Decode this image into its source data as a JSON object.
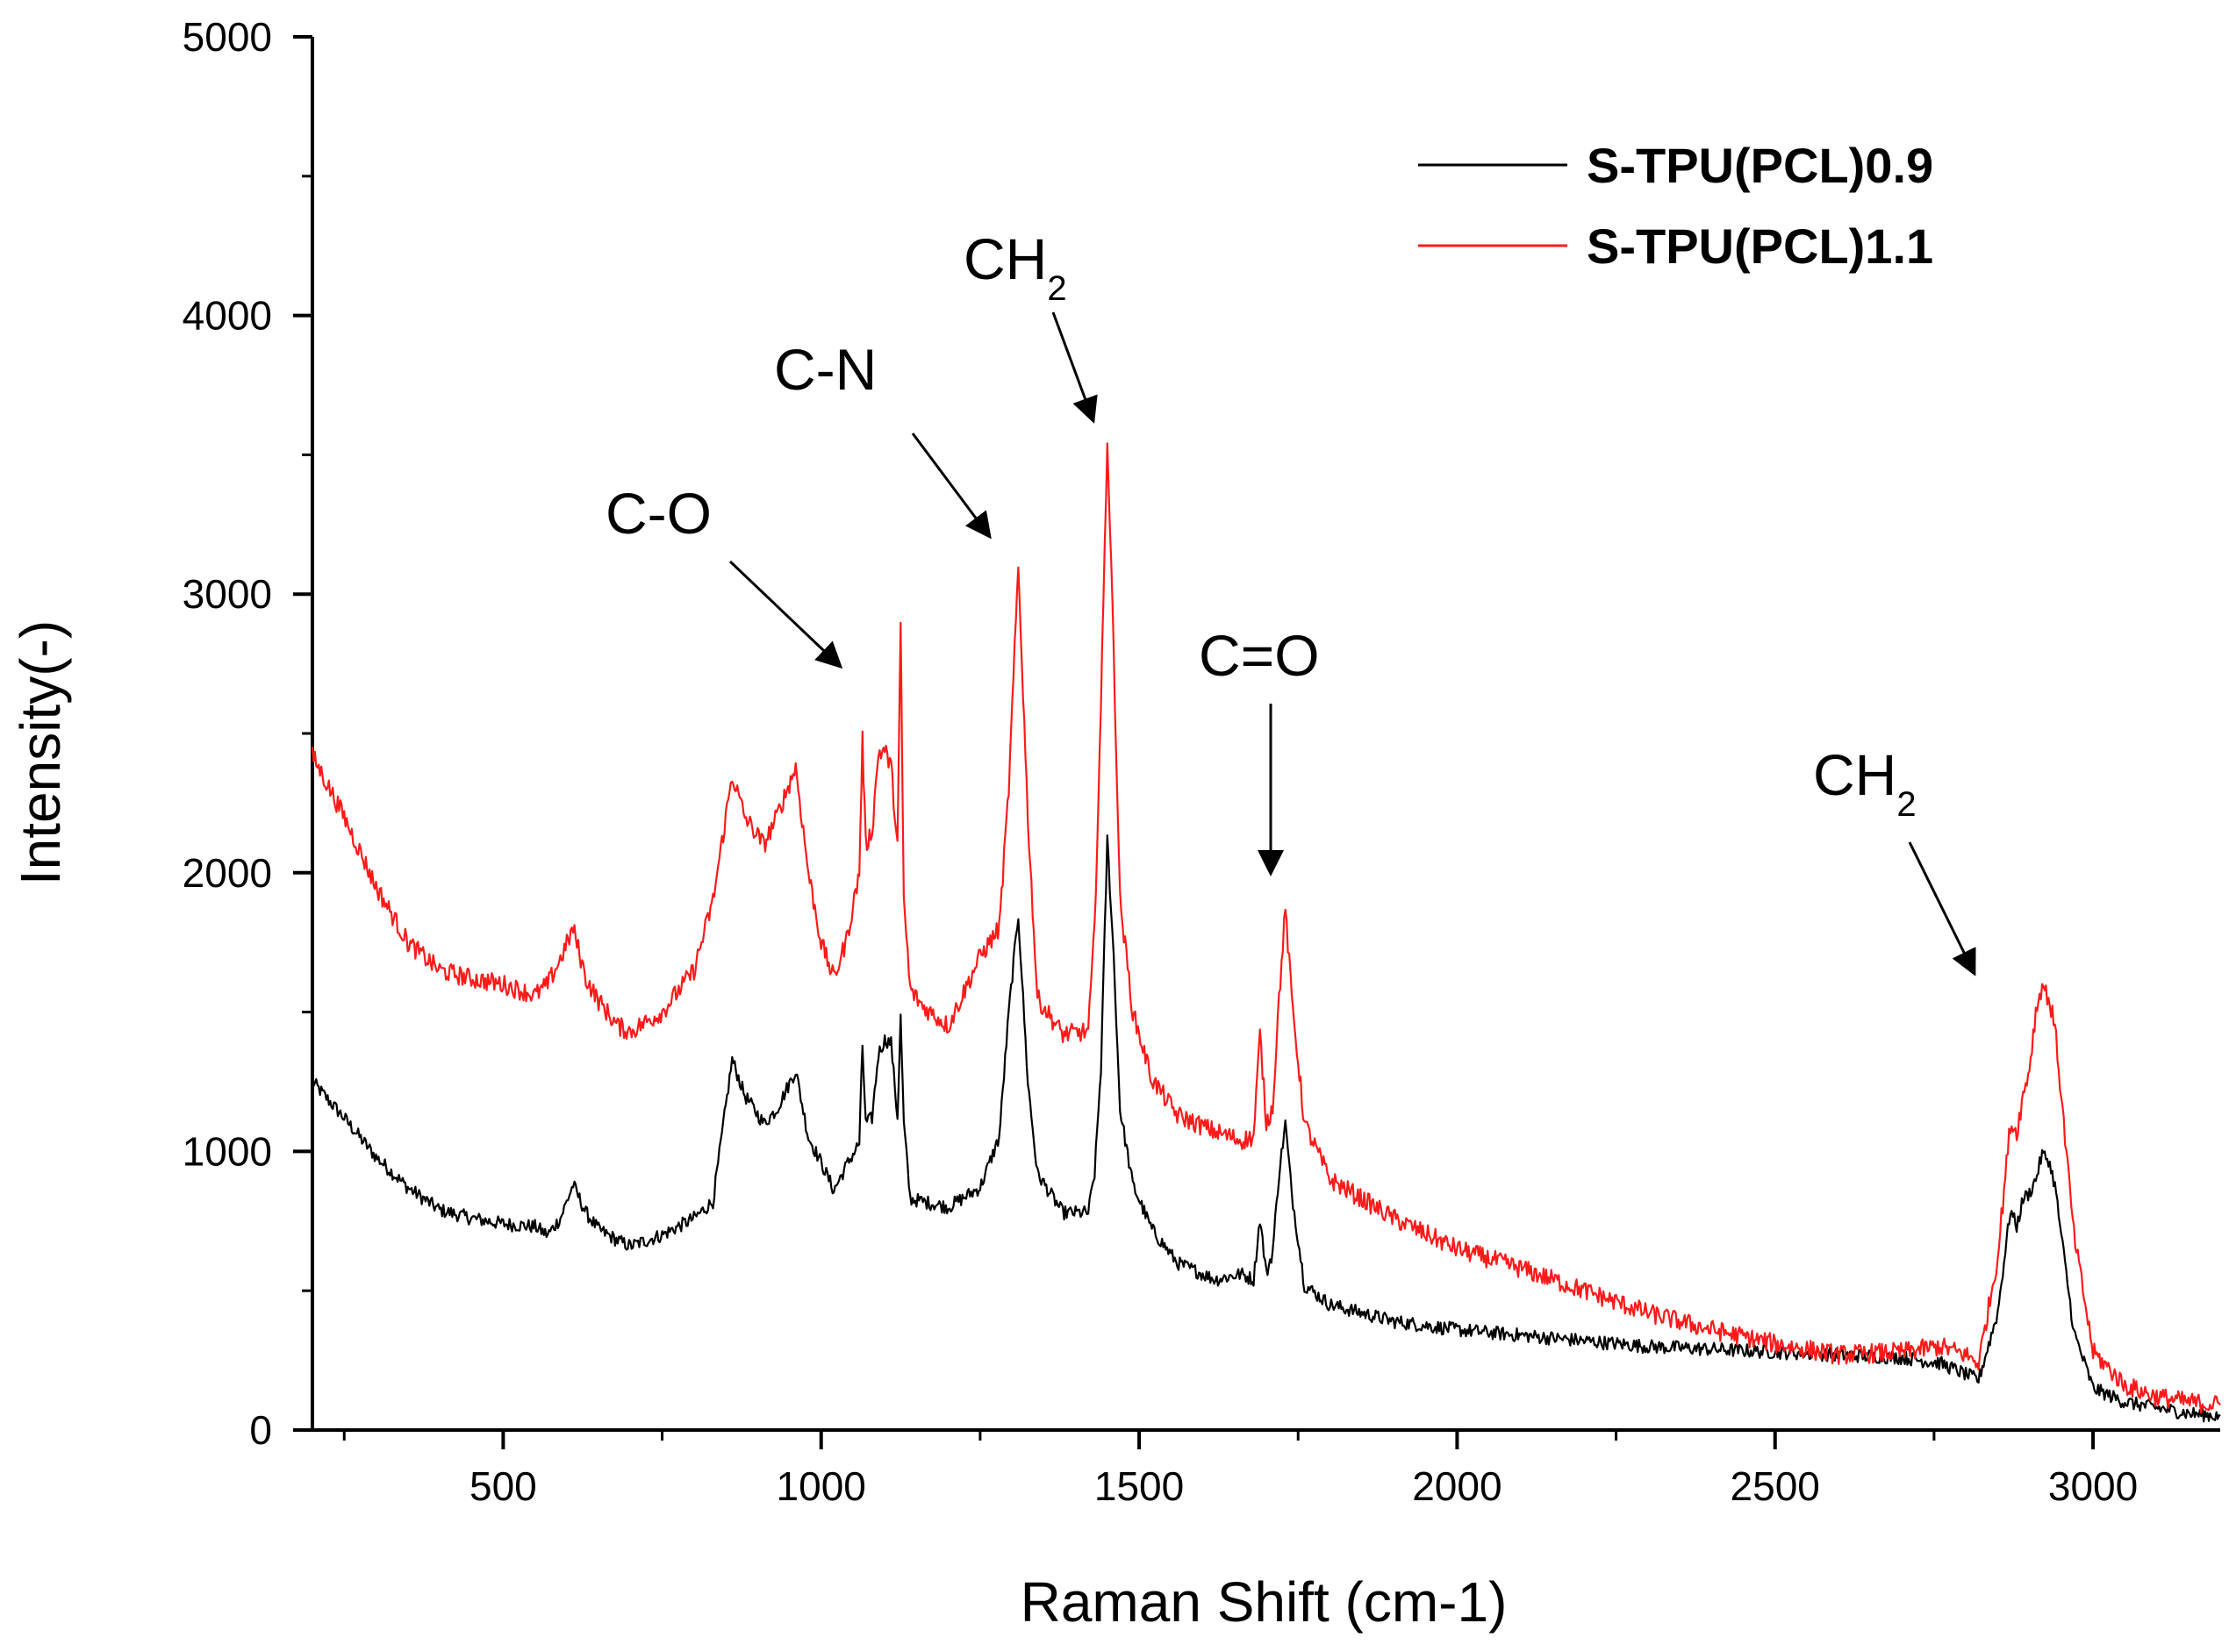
{
  "chart_data": {
    "type": "line",
    "title": "",
    "xlabel": "Raman Shift (cm-1)",
    "ylabel": "Intensity(-)",
    "xlim": [
      200,
      3200
    ],
    "ylim": [
      0,
      5000
    ],
    "x_ticks": [
      500,
      1000,
      1500,
      2000,
      2500,
      3000
    ],
    "x_tick_labels": [
      "500",
      "1000",
      "1500",
      "2000",
      "2500",
      "3000"
    ],
    "y_ticks": [
      0,
      1000,
      2000,
      3000,
      4000,
      5000
    ],
    "y_tick_labels": [
      "0",
      "1000",
      "2000",
      "3000",
      "4000",
      "5000"
    ],
    "legend_position": "top-right",
    "series": [
      {
        "name": "S-TPU(PCL)0.9",
        "color": "#000000",
        "x": [
          200,
          250,
          300,
          350,
          400,
          450,
          500,
          550,
          570,
          590,
          610,
          630,
          650,
          680,
          700,
          750,
          800,
          830,
          860,
          880,
          910,
          930,
          960,
          980,
          1000,
          1020,
          1040,
          1060,
          1065,
          1070,
          1080,
          1090,
          1100,
          1110,
          1120,
          1125,
          1130,
          1140,
          1160,
          1200,
          1250,
          1280,
          1295,
          1310,
          1325,
          1340,
          1380,
          1420,
          1430,
          1440,
          1450,
          1460,
          1470,
          1490,
          1520,
          1560,
          1620,
          1660,
          1680,
          1690,
          1700,
          1710,
          1720,
          1730,
          1740,
          1760,
          1800,
          1900,
          2000,
          2100,
          2200,
          2300,
          2400,
          2500,
          2600,
          2700,
          2760,
          2800,
          2820,
          2850,
          2870,
          2880,
          2890,
          2900,
          2910,
          2920,
          2930,
          2940,
          2950,
          2970,
          3000,
          3050,
          3100,
          3150,
          3200
        ],
        "values": [
          1250,
          1120,
          980,
          870,
          790,
          760,
          740,
          730,
          700,
          760,
          880,
          780,
          720,
          680,
          660,
          700,
          760,
          820,
          1330,
          1200,
          1100,
          1150,
          1290,
          1050,
          960,
          860,
          950,
          1030,
          1380,
          1100,
          1120,
          1350,
          1400,
          1390,
          1120,
          1480,
          1100,
          830,
          820,
          800,
          870,
          1050,
          1500,
          1850,
          1250,
          920,
          780,
          780,
          920,
          1300,
          2120,
          1700,
          1150,
          880,
          720,
          600,
          540,
          560,
          540,
          760,
          560,
          640,
          920,
          1100,
          850,
          520,
          450,
          390,
          360,
          340,
          320,
          300,
          290,
          280,
          270,
          260,
          240,
          200,
          180,
          420,
          790,
          730,
          830,
          850,
          900,
          990,
          970,
          880,
          700,
          350,
          150,
          100,
          80,
          60,
          50
        ]
      },
      {
        "name": "S-TPU(PCL)1.1",
        "color": "#ff1a1a",
        "x": [
          200,
          250,
          300,
          350,
          400,
          450,
          500,
          550,
          570,
          590,
          610,
          630,
          650,
          680,
          700,
          750,
          800,
          830,
          860,
          880,
          910,
          930,
          960,
          980,
          1000,
          1020,
          1040,
          1060,
          1065,
          1070,
          1080,
          1090,
          1100,
          1110,
          1120,
          1125,
          1130,
          1140,
          1160,
          1200,
          1250,
          1280,
          1295,
          1310,
          1325,
          1340,
          1380,
          1420,
          1430,
          1440,
          1450,
          1460,
          1470,
          1490,
          1520,
          1560,
          1620,
          1660,
          1680,
          1690,
          1700,
          1710,
          1720,
          1730,
          1740,
          1760,
          1800,
          1900,
          2000,
          2100,
          2200,
          2300,
          2400,
          2500,
          2600,
          2700,
          2760,
          2800,
          2820,
          2850,
          2870,
          2880,
          2890,
          2900,
          2910,
          2920,
          2930,
          2940,
          2950,
          2970,
          3000,
          3050,
          3100,
          3150,
          3200
        ],
        "values": [
          2420,
          2200,
          1950,
          1750,
          1650,
          1620,
          1600,
          1560,
          1600,
          1690,
          1800,
          1620,
          1540,
          1450,
          1430,
          1500,
          1650,
          1900,
          2350,
          2200,
          2100,
          2200,
          2380,
          2000,
          1750,
          1620,
          1760,
          2000,
          2480,
          2100,
          2150,
          2430,
          2440,
          2380,
          2100,
          2870,
          1900,
          1580,
          1520,
          1450,
          1700,
          1800,
          2300,
          3100,
          2200,
          1550,
          1420,
          1430,
          1800,
          2600,
          3560,
          2800,
          1900,
          1500,
          1260,
          1130,
          1070,
          1040,
          1050,
          1420,
          1100,
          1160,
          1550,
          1870,
          1550,
          1100,
          900,
          760,
          650,
          580,
          500,
          420,
          360,
          310,
          270,
          280,
          300,
          270,
          240,
          620,
          1100,
          1070,
          1200,
          1300,
          1500,
          1600,
          1550,
          1450,
          1200,
          700,
          280,
          160,
          120,
          100,
          90
        ]
      }
    ],
    "annotations": [
      {
        "label": "C-O",
        "sub": ""
      },
      {
        "label": "C-N",
        "sub": ""
      },
      {
        "label": "CH",
        "sub": "2"
      },
      {
        "label": "C=O",
        "sub": ""
      },
      {
        "label": "CH",
        "sub": "2"
      }
    ]
  }
}
